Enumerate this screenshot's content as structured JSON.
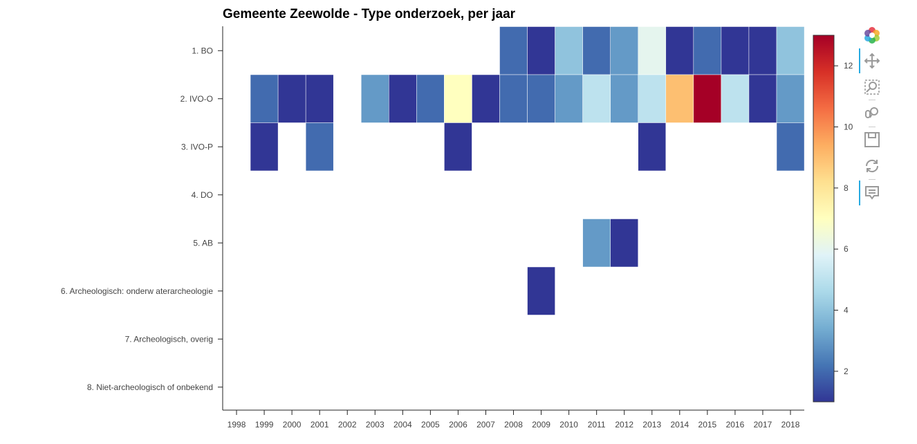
{
  "title": "Gemeente Zeewolde - Type onderzoek, per jaar",
  "chart_data": {
    "type": "heatmap",
    "title": "Gemeente Zeewolde - Type onderzoek, per jaar",
    "xlabel": "",
    "ylabel": "",
    "x_categories": [
      "1998",
      "1999",
      "2000",
      "2001",
      "2002",
      "2003",
      "2004",
      "2005",
      "2006",
      "2007",
      "2008",
      "2009",
      "2010",
      "2011",
      "2012",
      "2013",
      "2014",
      "2015",
      "2016",
      "2017",
      "2018"
    ],
    "y_categories": [
      "1. BO",
      "2. IVO-O",
      "3. IVO-P",
      "4. DO",
      "5. AB",
      "6. Archeologisch: onderw aterarcheologie",
      "7. Archeologisch, overig",
      "8. Niet-archeologisch of onbekend"
    ],
    "cells": [
      {
        "x": "2008",
        "y": "1. BO",
        "value": 2
      },
      {
        "x": "2009",
        "y": "1. BO",
        "value": 1
      },
      {
        "x": "2010",
        "y": "1. BO",
        "value": 4
      },
      {
        "x": "2011",
        "y": "1. BO",
        "value": 2
      },
      {
        "x": "2012",
        "y": "1. BO",
        "value": 3
      },
      {
        "x": "2013",
        "y": "1. BO",
        "value": 6
      },
      {
        "x": "2014",
        "y": "1. BO",
        "value": 1
      },
      {
        "x": "2015",
        "y": "1. BO",
        "value": 2
      },
      {
        "x": "2016",
        "y": "1. BO",
        "value": 1
      },
      {
        "x": "2017",
        "y": "1. BO",
        "value": 1
      },
      {
        "x": "2018",
        "y": "1. BO",
        "value": 4
      },
      {
        "x": "1999",
        "y": "2. IVO-O",
        "value": 2
      },
      {
        "x": "2000",
        "y": "2. IVO-O",
        "value": 1
      },
      {
        "x": "2001",
        "y": "2. IVO-O",
        "value": 1
      },
      {
        "x": "2003",
        "y": "2. IVO-O",
        "value": 3
      },
      {
        "x": "2004",
        "y": "2. IVO-O",
        "value": 1
      },
      {
        "x": "2005",
        "y": "2. IVO-O",
        "value": 2
      },
      {
        "x": "2006",
        "y": "2. IVO-O",
        "value": 7
      },
      {
        "x": "2007",
        "y": "2. IVO-O",
        "value": 1
      },
      {
        "x": "2008",
        "y": "2. IVO-O",
        "value": 2
      },
      {
        "x": "2009",
        "y": "2. IVO-O",
        "value": 2
      },
      {
        "x": "2010",
        "y": "2. IVO-O",
        "value": 3
      },
      {
        "x": "2011",
        "y": "2. IVO-O",
        "value": 5
      },
      {
        "x": "2012",
        "y": "2. IVO-O",
        "value": 3
      },
      {
        "x": "2013",
        "y": "2. IVO-O",
        "value": 5
      },
      {
        "x": "2014",
        "y": "2. IVO-O",
        "value": 9
      },
      {
        "x": "2015",
        "y": "2. IVO-O",
        "value": 13
      },
      {
        "x": "2016",
        "y": "2. IVO-O",
        "value": 5
      },
      {
        "x": "2017",
        "y": "2. IVO-O",
        "value": 1
      },
      {
        "x": "2018",
        "y": "2. IVO-O",
        "value": 3
      },
      {
        "x": "1999",
        "y": "3. IVO-P",
        "value": 1
      },
      {
        "x": "2001",
        "y": "3. IVO-P",
        "value": 2
      },
      {
        "x": "2006",
        "y": "3. IVO-P",
        "value": 1
      },
      {
        "x": "2013",
        "y": "3. IVO-P",
        "value": 1
      },
      {
        "x": "2018",
        "y": "3. IVO-P",
        "value": 2
      },
      {
        "x": "2011",
        "y": "5. AB",
        "value": 3
      },
      {
        "x": "2012",
        "y": "5. AB",
        "value": 1
      },
      {
        "x": "2009",
        "y": "6. Archeologisch: onderw aterarcheologie",
        "value": 1
      }
    ],
    "color_range": [
      1,
      13
    ],
    "colormap": [
      "#313695",
      "#4575b4",
      "#74add1",
      "#abd9e9",
      "#e0f3f8",
      "#ffffbf",
      "#fee090",
      "#fdae61",
      "#f46d43",
      "#d73027",
      "#a50026"
    ],
    "colorbar_ticks": [
      "2",
      "4",
      "6",
      "8",
      "10",
      "12"
    ],
    "colorbar_tick_values": [
      2,
      4,
      6,
      8,
      10,
      12
    ]
  },
  "toolbar": {
    "tools": [
      {
        "name": "bokeh-logo-icon"
      },
      {
        "name": "pan-icon"
      },
      {
        "name": "box-zoom-icon"
      },
      {
        "name": "wheel-zoom-icon"
      },
      {
        "name": "save-icon"
      },
      {
        "name": "reset-icon"
      },
      {
        "name": "hover-icon"
      }
    ]
  }
}
